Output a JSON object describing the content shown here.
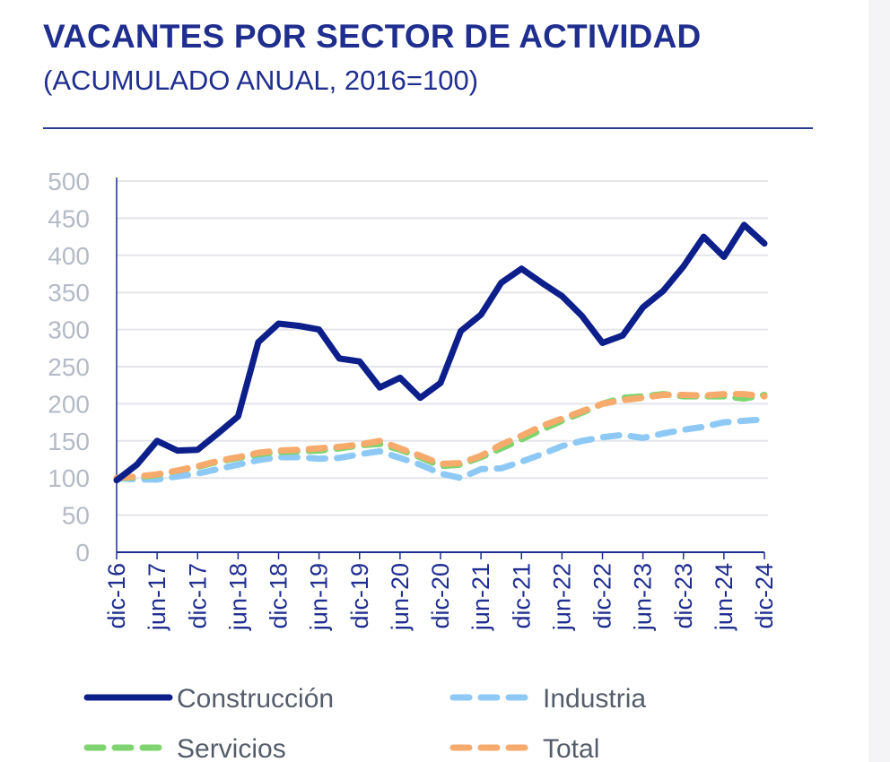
{
  "header": {
    "title": "VACANTES POR SECTOR DE ACTIVIDAD",
    "subtitle": "(ACUMULADO ANUAL, 2016=100)"
  },
  "colors": {
    "title": "#1f2e8f",
    "grid": "#e3e5ea",
    "axis": "#1f2e8f",
    "tick_y": "#b4bac6"
  },
  "chart_data": {
    "type": "line",
    "title": "VACANTES POR SECTOR DE ACTIVIDAD",
    "subtitle": "(ACUMULADO ANUAL, 2016=100)",
    "xlabel": "",
    "ylabel": "",
    "ylim": [
      0,
      500
    ],
    "yticks": [
      0,
      50,
      100,
      150,
      200,
      250,
      300,
      350,
      400,
      450,
      500
    ],
    "grid": true,
    "legend_position": "bottom",
    "x": [
      "dic-16",
      "mar-17",
      "jun-17",
      "sep-17",
      "dic-17",
      "mar-18",
      "jun-18",
      "sep-18",
      "dic-18",
      "mar-19",
      "jun-19",
      "sep-19",
      "dic-19",
      "mar-20",
      "jun-20",
      "sep-20",
      "dic-20",
      "mar-21",
      "jun-21",
      "sep-21",
      "dic-21",
      "mar-22",
      "jun-22",
      "sep-22",
      "dic-22",
      "mar-23",
      "jun-23",
      "sep-23",
      "dic-23",
      "mar-24",
      "jun-24",
      "sep-24",
      "dic-24"
    ],
    "x_tick_labels": [
      "dic-16",
      "jun-17",
      "dic-17",
      "jun-18",
      "dic-18",
      "jun-19",
      "dic-19",
      "jun-20",
      "dic-20",
      "jun-21",
      "dic-21",
      "jun-22",
      "dic-22",
      "jun-23",
      "dic-23",
      "jun-24",
      "dic-24"
    ],
    "series": [
      {
        "name": "Construcción",
        "color": "#0d1f8a",
        "dash": "solid",
        "values": [
          97,
          118,
          150,
          137,
          138,
          160,
          183,
          283,
          308,
          305,
          300,
          261,
          257,
          222,
          235,
          208,
          228,
          298,
          320,
          363,
          382,
          363,
          345,
          318,
          282,
          292,
          330,
          352,
          385,
          425,
          398,
          441,
          416
        ]
      },
      {
        "name": "Industria",
        "color": "#8ec9f5",
        "dash": "dashed",
        "values": [
          100,
          98,
          98,
          102,
          106,
          112,
          118,
          124,
          128,
          128,
          126,
          127,
          132,
          136,
          127,
          118,
          106,
          100,
          112,
          113,
          122,
          132,
          143,
          150,
          155,
          158,
          154,
          160,
          165,
          169,
          175,
          177,
          179
        ]
      },
      {
        "name": "Servicios",
        "color": "#7ed46e",
        "dash": "dashed",
        "values": [
          100,
          101,
          104,
          110,
          115,
          122,
          127,
          132,
          135,
          136,
          137,
          140,
          144,
          146,
          138,
          128,
          116,
          118,
          128,
          140,
          152,
          165,
          177,
          188,
          200,
          208,
          210,
          213,
          210,
          210,
          210,
          207,
          212
        ]
      },
      {
        "name": "Total",
        "color": "#f6ab6c",
        "dash": "dashed",
        "values": [
          100,
          102,
          105,
          110,
          116,
          123,
          128,
          134,
          137,
          138,
          140,
          142,
          145,
          150,
          140,
          130,
          119,
          120,
          130,
          145,
          157,
          170,
          180,
          190,
          200,
          205,
          208,
          212,
          212,
          211,
          213,
          213,
          210
        ]
      }
    ]
  }
}
